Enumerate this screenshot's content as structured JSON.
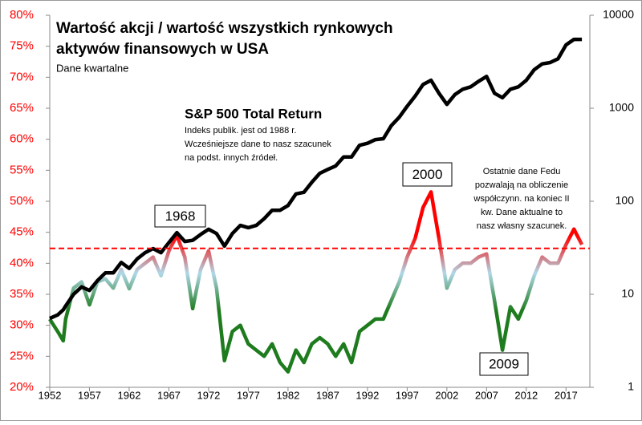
{
  "chart_data": {
    "type": "line",
    "title": [
      "Wartość akcji / wartość wszystkich rynkowych",
      "aktywów  finansowych w USA"
    ],
    "subtitle": "Dane kwartalne",
    "x": [
      1952,
      1953,
      1953.7,
      1954,
      1955,
      1956,
      1957,
      1958,
      1959,
      1960,
      1961,
      1962,
      1963,
      1964,
      1965,
      1966,
      1967,
      1968,
      1969,
      1970,
      1971,
      1972,
      1973,
      1974,
      1975,
      1976,
      1977,
      1978,
      1979,
      1980,
      1981,
      1982,
      1983,
      1984,
      1985,
      1986,
      1987,
      1988,
      1989,
      1990,
      1991,
      1992,
      1993,
      1994,
      1995,
      1996,
      1997,
      1998,
      1999,
      2000,
      2001,
      2002,
      2003,
      2004,
      2005,
      2006,
      2007,
      2008,
      2009,
      2010,
      2011,
      2012,
      2013,
      2014,
      2015,
      2016,
      2017,
      2018,
      2019
    ],
    "series": [
      {
        "name": "Wartość akcji / wartość aktywów",
        "colors": [
          "#ff0000",
          "#b0d8e8",
          "#1e7b1e"
        ],
        "values": [
          31,
          29,
          27.5,
          31,
          36,
          37,
          33.3,
          37,
          37.5,
          36,
          39,
          35.9,
          39,
          40,
          41,
          38,
          42,
          44.5,
          41,
          32.7,
          39,
          42,
          36,
          24.3,
          29,
          30,
          27,
          26,
          25,
          27,
          24,
          22.5,
          26,
          24,
          27,
          28,
          27,
          25,
          27,
          24,
          29,
          30,
          31,
          31,
          34,
          37,
          41,
          44,
          49,
          51.5,
          44,
          36,
          39,
          40,
          40,
          41,
          41.5,
          34,
          26,
          33,
          31,
          34,
          38,
          41,
          40,
          40,
          43,
          45.5,
          43
        ]
      },
      {
        "name": "S&P 500 Total Return",
        "color": "#000000",
        "axis": "y2",
        "values": [
          5.5,
          6,
          6.8,
          7.5,
          10,
          12,
          11,
          14,
          17,
          17,
          22,
          19,
          24,
          28,
          31,
          28,
          36,
          46,
          37,
          38,
          44,
          50,
          45,
          33,
          45,
          55,
          52,
          55,
          65,
          80,
          80,
          90,
          120,
          125,
          160,
          200,
          220,
          240,
          300,
          300,
          400,
          420,
          460,
          470,
          650,
          800,
          1050,
          1350,
          1800,
          2000,
          1450,
          1100,
          1400,
          1600,
          1700,
          1950,
          2200,
          1450,
          1300,
          1600,
          1700,
          2000,
          2600,
          3000,
          3100,
          3400,
          4800,
          5500,
          5500
        ]
      }
    ],
    "xlim": [
      1952,
      2020
    ],
    "xticks": [
      1952,
      1957,
      1962,
      1967,
      1972,
      1977,
      1982,
      1987,
      1992,
      1997,
      2002,
      2007,
      2012,
      2017
    ],
    "ylim": [
      20,
      80
    ],
    "yticks": [
      {
        "value": 20,
        "label": "20%"
      },
      {
        "value": 25,
        "label": "25%"
      },
      {
        "value": 30,
        "label": "30%"
      },
      {
        "value": 35,
        "label": "35%"
      },
      {
        "value": 40,
        "label": "40%"
      },
      {
        "value": 45,
        "label": "45%"
      },
      {
        "value": 50,
        "label": "50%"
      },
      {
        "value": 55,
        "label": "55%"
      },
      {
        "value": 60,
        "label": "60%"
      },
      {
        "value": 65,
        "label": "65%"
      },
      {
        "value": 70,
        "label": "70%"
      },
      {
        "value": 75,
        "label": "75%"
      },
      {
        "value": 80,
        "label": "80%"
      }
    ],
    "y2lim": [
      1,
      10000
    ],
    "y2ticks": [
      1,
      10,
      100,
      1000,
      10000
    ],
    "y2_log": true,
    "ytick_color": "#ff0000",
    "reference_line": {
      "value": 42.4,
      "color": "#ff0000"
    },
    "annotations": [
      {
        "text": "1968"
      },
      {
        "text": "2000"
      },
      {
        "text": "2009"
      },
      {
        "lines": [
          "S&P 500 Total Return"
        ]
      },
      {
        "lines": [
          "Indeks publik. jest od 1988 r.",
          "Wcześniejsze dane to nasz szacunek",
          "na podst. innych źródeł."
        ]
      },
      {
        "lines": [
          "Ostatnie dane Fedu",
          "pozwalają na obliczenie",
          "współczynn. na koniec II",
          "kw. Dane aktualne to",
          "nasz własny szacunek."
        ]
      }
    ]
  }
}
